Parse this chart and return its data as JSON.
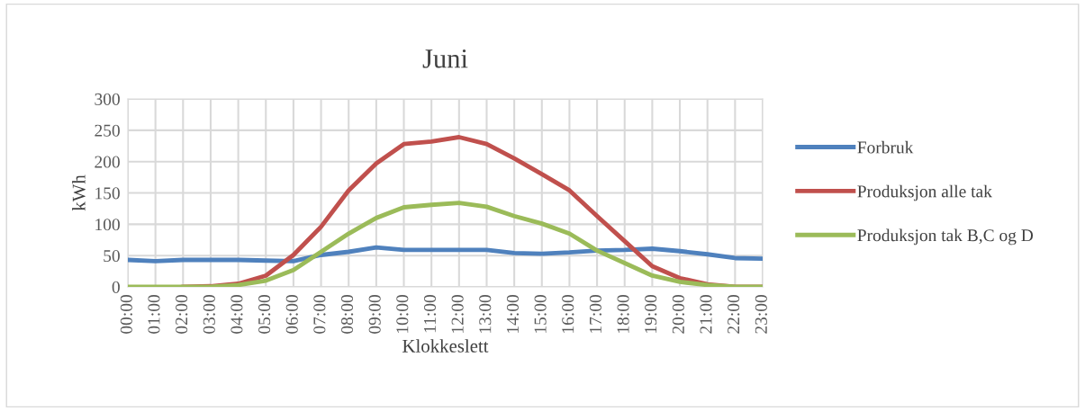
{
  "chart_data": {
    "type": "line",
    "title": "Juni",
    "xlabel": "Klokkeslett",
    "ylabel": "kWh",
    "categories": [
      "00:00",
      "01:00",
      "02:00",
      "03:00",
      "04:00",
      "05:00",
      "06:00",
      "07:00",
      "08:00",
      "09:00",
      "10:00",
      "11:00",
      "12:00",
      "13:00",
      "14:00",
      "15:00",
      "16:00",
      "17:00",
      "18:00",
      "19:00",
      "20:00",
      "21:00",
      "22:00",
      "23:00"
    ],
    "series": [
      {
        "name": "Forbruk",
        "color": "#4f81bd",
        "values": [
          43,
          41,
          43,
          43,
          43,
          42,
          41,
          51,
          56,
          63,
          59,
          59,
          59,
          59,
          54,
          53,
          55,
          58,
          59,
          61,
          57,
          52,
          46,
          45
        ]
      },
      {
        "name": "Produksjon alle tak",
        "color": "#c0504d",
        "values": [
          null,
          null,
          0,
          1,
          5,
          18,
          51,
          96,
          154,
          197,
          228,
          232,
          239,
          228,
          205,
          180,
          154,
          113,
          73,
          33,
          14,
          4,
          0,
          0
        ]
      },
      {
        "name": "Produksjon tak B,C og D",
        "color": "#9bbb59",
        "values": [
          0,
          0,
          0,
          0,
          3,
          10,
          27,
          56,
          85,
          110,
          127,
          131,
          134,
          128,
          113,
          101,
          85,
          58,
          38,
          18,
          8,
          3,
          0,
          0
        ]
      }
    ],
    "ylim": [
      0,
      300
    ],
    "yticks": [
      0,
      50,
      100,
      150,
      200,
      250,
      300
    ],
    "grid": true,
    "legend": "right",
    "marker": "none",
    "line_style": "solid"
  }
}
